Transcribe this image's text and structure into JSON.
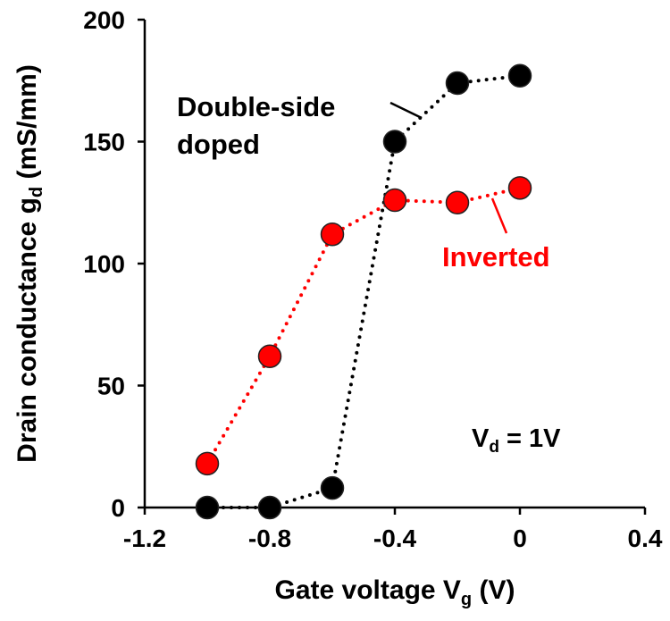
{
  "chart_data": {
    "type": "scatter",
    "title": "",
    "xlabel": "Gate voltage V",
    "xlabel_sub": "g",
    "xlabel_unit": " (V)",
    "ylabel": "Drain conductance g",
    "ylabel_sub": "d",
    "ylabel_unit": " (mS/mm)",
    "xlim": [
      -1.2,
      0.4
    ],
    "ylim": [
      0,
      200
    ],
    "xticks": [
      -1.2,
      -0.8,
      -0.4,
      0,
      0.4
    ],
    "xtick_labels": [
      "-1.2",
      "-0.8",
      "-0.4",
      "0",
      "0.4"
    ],
    "yticks": [
      0,
      50,
      100,
      150,
      200
    ],
    "ytick_labels": [
      "0",
      "50",
      "100",
      "150",
      "200"
    ],
    "grid": false,
    "series": [
      {
        "name": "Double-side doped",
        "label_line1": "Double-side",
        "label_line2": "doped",
        "color": "#000000",
        "x": [
          -1.0,
          -0.8,
          -0.6,
          -0.4,
          -0.2,
          0.0
        ],
        "y": [
          0,
          0,
          8,
          150,
          174,
          177
        ]
      },
      {
        "name": "Inverted",
        "label_line1": "Inverted",
        "color": "#ff0000",
        "x": [
          -1.0,
          -0.8,
          -0.6,
          -0.4,
          -0.2,
          0.0
        ],
        "y": [
          18,
          62,
          112,
          126,
          125,
          131
        ]
      }
    ],
    "annotation": {
      "text": "V",
      "sub": "d",
      "rest": " = 1V"
    }
  }
}
